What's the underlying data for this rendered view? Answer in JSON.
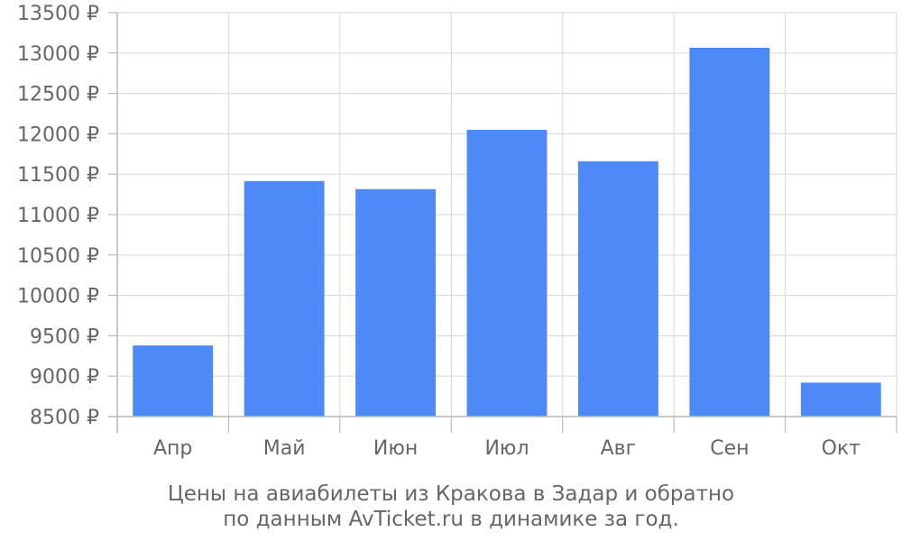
{
  "chart_data": {
    "type": "bar",
    "categories": [
      "Апр",
      "Май",
      "Июн",
      "Июл",
      "Авг",
      "Сен",
      "Окт"
    ],
    "values": [
      9380,
      11415,
      11315,
      12050,
      11660,
      13065,
      8920
    ],
    "ylim": [
      8500,
      13500
    ],
    "yticks": [
      13500,
      13000,
      12500,
      12000,
      11500,
      11000,
      10500,
      10000,
      9500,
      9000,
      8500
    ],
    "ytick_suffix": " ₽",
    "grid": true,
    "bar_color": "#4d8af8",
    "grid_color": "#dddddd",
    "text_color": "#666666"
  },
  "caption": {
    "line1": "Цены на авиабилеты из Кракова в Задар и обратно",
    "line2": "по данным AvTicket.ru в динамике за год."
  }
}
